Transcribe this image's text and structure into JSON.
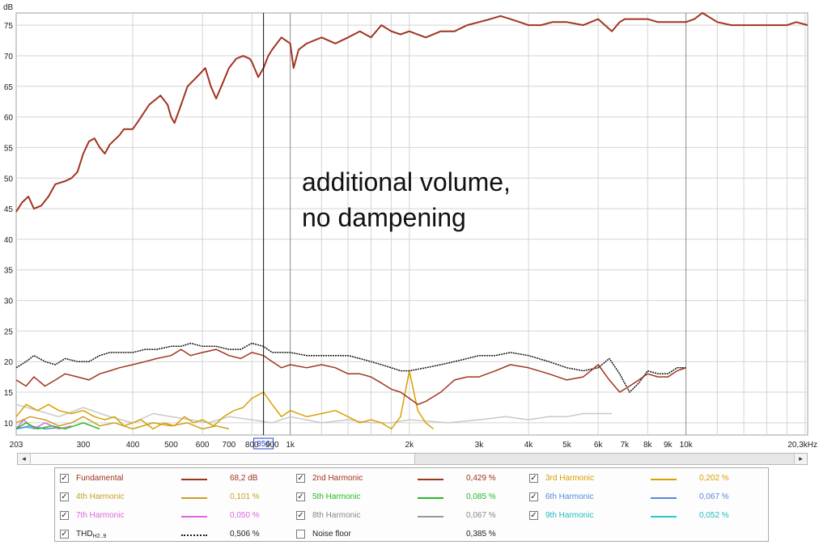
{
  "chart_data": {
    "type": "line",
    "title": "",
    "ylabel": "dB",
    "xlabel": "",
    "xscale": "log",
    "xlim": [
      203,
      20300
    ],
    "ylim": [
      8,
      77
    ],
    "y_ticks": [
      10,
      15,
      20,
      25,
      30,
      35,
      40,
      45,
      50,
      55,
      60,
      65,
      70,
      75
    ],
    "x_ticks": [
      {
        "value": 203,
        "label": "203"
      },
      {
        "value": 300,
        "label": "300"
      },
      {
        "value": 400,
        "label": "400"
      },
      {
        "value": 500,
        "label": "500"
      },
      {
        "value": 600,
        "label": "600"
      },
      {
        "value": 700,
        "label": "700"
      },
      {
        "value": 800,
        "label": "800"
      },
      {
        "value": 900,
        "label": "900"
      },
      {
        "value": 1000,
        "label": "1k"
      },
      {
        "value": 2000,
        "label": "2k"
      },
      {
        "value": 3000,
        "label": "3k"
      },
      {
        "value": 4000,
        "label": "4k"
      },
      {
        "value": 5000,
        "label": "5k"
      },
      {
        "value": 6000,
        "label": "6k"
      },
      {
        "value": 7000,
        "label": "7k"
      },
      {
        "value": 8000,
        "label": "8k"
      },
      {
        "value": 9000,
        "label": "9k"
      },
      {
        "value": 10000,
        "label": "10k"
      },
      {
        "value": 20300,
        "label": "20,3kHz"
      }
    ],
    "cursor": {
      "x": 856,
      "label": "856"
    },
    "annotation": [
      "additional volume,",
      "no dampening"
    ],
    "grid": true,
    "series": [
      {
        "name": "Fundamental",
        "color": "#a0341f",
        "x": [
          203,
          210,
          218,
          225,
          235,
          245,
          255,
          270,
          280,
          290,
          300,
          310,
          320,
          330,
          340,
          350,
          370,
          380,
          400,
          410,
          420,
          440,
          460,
          470,
          490,
          500,
          510,
          530,
          550,
          570,
          590,
          610,
          630,
          650,
          680,
          700,
          730,
          760,
          790,
          800,
          830,
          856,
          880,
          900,
          950,
          1000,
          1020,
          1050,
          1100,
          1150,
          1200,
          1300,
          1400,
          1500,
          1600,
          1700,
          1800,
          1900,
          2000,
          2200,
          2400,
          2600,
          2800,
          3000,
          3200,
          3400,
          3600,
          3800,
          4000,
          4300,
          4600,
          5000,
          5500,
          6000,
          6500,
          6800,
          7000,
          7500,
          8000,
          8500,
          9000,
          9500,
          10000,
          10500,
          11000,
          12000,
          13000,
          14000,
          15000,
          16000,
          17000,
          18000,
          19000,
          20300
        ],
        "y": [
          44.5,
          46,
          47,
          45,
          45.5,
          47,
          49,
          49.5,
          50,
          51,
          54,
          56,
          56.5,
          55,
          54,
          55.5,
          57,
          58,
          58,
          59,
          60,
          62,
          63,
          63.5,
          62,
          60,
          59,
          62,
          65,
          66,
          67,
          68,
          65,
          63,
          66,
          68,
          69.5,
          70,
          69.5,
          69,
          66.5,
          68,
          70,
          71,
          73,
          72,
          68,
          71,
          72,
          72.5,
          73,
          72,
          73,
          74,
          73,
          75,
          74,
          73.5,
          74,
          73,
          74,
          74,
          75,
          75.5,
          76,
          76.5,
          76,
          75.5,
          75,
          75,
          75.5,
          75.5,
          75,
          76,
          74,
          75.5,
          76,
          76,
          76,
          75.5,
          75.5,
          75.5,
          75.5,
          76,
          77,
          75.5,
          75,
          75,
          75,
          75,
          75,
          75,
          75.5,
          75
        ]
      },
      {
        "name": "2nd Harmonic",
        "color": "#a0341f",
        "x": [
          203,
          215,
          225,
          240,
          255,
          270,
          290,
          310,
          330,
          350,
          370,
          400,
          430,
          460,
          500,
          530,
          560,
          600,
          650,
          700,
          750,
          800,
          856,
          900,
          950,
          1000,
          1100,
          1200,
          1300,
          1400,
          1500,
          1600,
          1700,
          1800,
          1900,
          2000,
          2100,
          2200,
          2400,
          2600,
          2800,
          3000,
          3300,
          3600,
          4000,
          4500,
          5000,
          5500,
          6000,
          6400,
          6800,
          7200,
          7600,
          8000,
          8500,
          9000,
          9500,
          10000
        ],
        "y": [
          17,
          16,
          17.5,
          16,
          17,
          18,
          17.5,
          17,
          18,
          18.5,
          19,
          19.5,
          20,
          20.5,
          21,
          22,
          21,
          21.5,
          22,
          21,
          20.5,
          21.5,
          21,
          20,
          19,
          19.5,
          19,
          19.5,
          19,
          18,
          18,
          17.5,
          16.5,
          15.5,
          15,
          14,
          13,
          13.5,
          15,
          17,
          17.5,
          17.5,
          18.5,
          19.5,
          19,
          18,
          17,
          17.5,
          19.5,
          17,
          15,
          16,
          17,
          18,
          17.5,
          17.5,
          18.5,
          19
        ]
      },
      {
        "name": "THD H2..9",
        "color": "#111111",
        "dashed": true,
        "x": [
          203,
          215,
          225,
          240,
          255,
          270,
          290,
          310,
          330,
          350,
          370,
          400,
          430,
          460,
          500,
          530,
          560,
          600,
          650,
          700,
          750,
          800,
          856,
          900,
          950,
          1000,
          1100,
          1200,
          1300,
          1400,
          1500,
          1600,
          1700,
          1800,
          1900,
          2000,
          2200,
          2400,
          2600,
          2800,
          3000,
          3300,
          3600,
          4000,
          4500,
          5000,
          5500,
          6000,
          6400,
          6800,
          7200,
          7600,
          8000,
          8500,
          9000,
          9500,
          10000
        ],
        "y": [
          19,
          20,
          21,
          20,
          19.5,
          20.5,
          20,
          20,
          21,
          21.5,
          21.5,
          21.5,
          22,
          22,
          22.5,
          22.5,
          23,
          22.5,
          22.5,
          22,
          22,
          23,
          22.5,
          21.5,
          21.5,
          21.5,
          21,
          21,
          21,
          21,
          20.5,
          20,
          19.5,
          19,
          18.5,
          18.5,
          19,
          19.5,
          20,
          20.5,
          21,
          21,
          21.5,
          21,
          20,
          19,
          18.5,
          19,
          20.5,
          18,
          15,
          16.5,
          18.5,
          18,
          18,
          19,
          19
        ]
      },
      {
        "name": "3rd Harmonic",
        "color": "#d9a000",
        "x": [
          203,
          215,
          230,
          245,
          260,
          280,
          300,
          320,
          340,
          360,
          380,
          400,
          420,
          450,
          480,
          510,
          540,
          570,
          600,
          640,
          680,
          720,
          760,
          800,
          856,
          900,
          950,
          1000,
          1100,
          1200,
          1300,
          1400,
          1500,
          1600,
          1700,
          1800,
          1900,
          2000,
          2100,
          2200,
          2300
        ],
        "y": [
          11,
          13,
          12,
          13,
          12,
          11.5,
          12,
          11,
          10.5,
          11,
          9.5,
          10,
          10.5,
          9,
          10,
          9.5,
          11,
          10,
          10.5,
          9.5,
          11,
          12,
          12.5,
          14,
          15,
          13,
          11,
          12,
          11,
          11.5,
          12,
          11,
          10,
          10.5,
          10,
          9,
          11,
          18.5,
          12,
          10,
          9
        ]
      },
      {
        "name": "4th Harmonic",
        "color": "#c8a020",
        "x": [
          203,
          220,
          240,
          260,
          280,
          300,
          330,
          360,
          400,
          450,
          500,
          550,
          600,
          650,
          700
        ],
        "y": [
          10,
          11,
          10.5,
          9.5,
          10,
          11,
          9.5,
          10,
          9,
          10,
          9.5,
          10,
          9,
          9.5,
          9
        ]
      },
      {
        "name": "5th Harmonic",
        "color": "#22bb22",
        "x": [
          203,
          215,
          230,
          250,
          270,
          300,
          330
        ],
        "y": [
          9,
          10,
          9,
          9.5,
          9,
          10,
          9
        ]
      },
      {
        "name": "7th Harmonic",
        "color": "#dd66dd",
        "x": [
          203,
          212,
          225,
          240,
          260,
          280
        ],
        "y": [
          9,
          10.5,
          9,
          10,
          9,
          9.5
        ]
      },
      {
        "name": "8th Harmonic",
        "color": "#c8c8c8",
        "x": [
          203,
          230,
          260,
          300,
          350,
          400,
          450,
          500,
          560,
          620,
          700,
          800,
          900,
          1000,
          1200,
          1400,
          1600,
          1800,
          2000,
          2500,
          3000,
          3500,
          4000,
          4500,
          5000,
          5500,
          6000,
          6500
        ],
        "y": [
          13,
          12,
          11,
          12.5,
          11,
          10,
          11.5,
          11,
          10.5,
          10,
          11,
          10.5,
          10,
          11,
          10,
          10.5,
          10,
          10,
          10.5,
          10,
          10.5,
          11,
          10.5,
          11,
          11,
          11.5,
          11.5,
          11.5
        ]
      },
      {
        "name": "6th Harmonic",
        "color": "#5588dd",
        "x": [
          203,
          220,
          240,
          260
        ],
        "y": [
          9,
          9.5,
          9,
          9.2
        ]
      },
      {
        "name": "9th Harmonic",
        "color": "#22cccc",
        "x": [
          203,
          215,
          230
        ],
        "y": [
          9,
          9.3,
          9
        ]
      }
    ]
  },
  "legend": [
    {
      "name": "Fundamental",
      "value": "68,2 dB",
      "color": "#a0341f",
      "text_color": "#a0341f",
      "checked": true
    },
    {
      "name": "2nd Harmonic",
      "value": "0,429 %",
      "color": "#a0341f",
      "text_color": "#a0341f",
      "checked": true
    },
    {
      "name": "3rd Harmonic",
      "value": "0,202 %",
      "color": "#d9a000",
      "text_color": "#d9a000",
      "checked": true
    },
    {
      "name": "4th Harmonic",
      "value": "0,101 %",
      "color": "#c8a020",
      "text_color": "#c8a020",
      "checked": true
    },
    {
      "name": "5th Harmonic",
      "value": "0,085 %",
      "color": "#22bb22",
      "text_color": "#22bb22",
      "checked": true
    },
    {
      "name": "6th Harmonic",
      "value": "0,067 %",
      "color": "#5588dd",
      "text_color": "#5588dd",
      "checked": true
    },
    {
      "name": "7th Harmonic",
      "value": "0,050 %",
      "color": "#dd66dd",
      "text_color": "#dd66dd",
      "checked": true
    },
    {
      "name": "8th Harmonic",
      "value": "0,067 %",
      "color": "#999999",
      "text_color": "#888888",
      "checked": true
    },
    {
      "name": "9th Harmonic",
      "value": "0,052 %",
      "color": "#22cccc",
      "text_color": "#22bbbb",
      "checked": true
    },
    {
      "name": "THD",
      "name_sub": "H2..9",
      "value": "0,506 %",
      "color": "#222222",
      "text_color": "#222222",
      "checked": true
    },
    {
      "name": "Noise floor",
      "value": "0,385 %",
      "color": "",
      "text_color": "#222222",
      "checked": false
    }
  ],
  "check_glyph": "✓",
  "scroll_left_glyph": "◂",
  "scroll_right_glyph": "▸"
}
